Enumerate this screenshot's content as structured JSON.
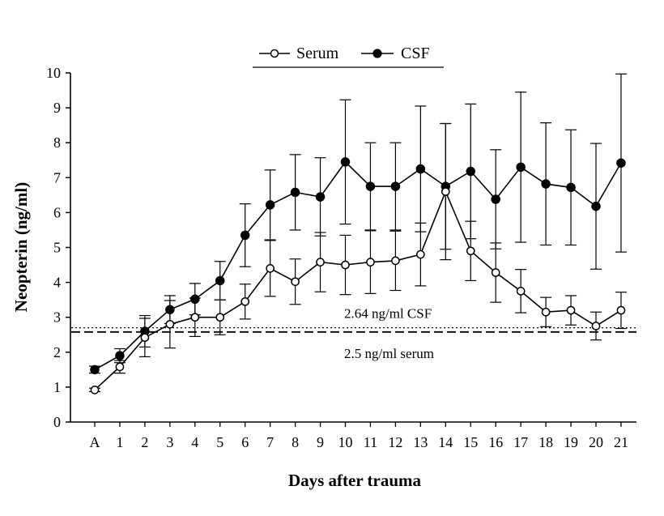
{
  "chart_data": {
    "type": "line",
    "title": "",
    "xlabel": "Days after trauma",
    "ylabel": "Neopterin (ng/ml)",
    "categories": [
      "A",
      "1",
      "2",
      "3",
      "4",
      "5",
      "6",
      "7",
      "8",
      "9",
      "10",
      "11",
      "12",
      "13",
      "14",
      "15",
      "16",
      "17",
      "18",
      "19",
      "20",
      "21"
    ],
    "ylim": [
      0,
      10
    ],
    "yticks": [
      "0",
      "1",
      "2",
      "3",
      "4",
      "5",
      "6",
      "7",
      "8",
      "9",
      "10"
    ],
    "grid": false,
    "legend_position": "top-center",
    "series": [
      {
        "name": "Serum",
        "marker": "open-circle",
        "color": "#000000",
        "values": [
          0.92,
          1.58,
          2.42,
          2.8,
          3.0,
          3.0,
          3.45,
          4.4,
          4.02,
          4.58,
          4.5,
          4.58,
          4.62,
          4.8,
          6.6,
          4.9,
          4.28,
          3.75,
          3.15,
          3.2,
          2.75,
          3.2
        ],
        "error": [
          0.05,
          0.18,
          0.55,
          0.68,
          0.55,
          0.5,
          0.5,
          0.8,
          0.65,
          0.85,
          0.85,
          0.9,
          0.85,
          0.9,
          1.95,
          0.85,
          0.85,
          0.62,
          0.42,
          0.42,
          0.4,
          0.52
        ]
      },
      {
        "name": "CSF",
        "marker": "filled-circle",
        "color": "#000000",
        "values": [
          1.5,
          1.9,
          2.6,
          3.22,
          3.52,
          4.05,
          5.35,
          6.22,
          6.58,
          6.45,
          7.45,
          6.75,
          6.75,
          7.25,
          6.75,
          7.18,
          6.38,
          7.3,
          6.82,
          6.72,
          6.18,
          7.42
        ],
        "error": [
          0.1,
          0.2,
          0.45,
          0.4,
          0.45,
          0.55,
          0.9,
          1.0,
          1.08,
          1.12,
          1.78,
          1.25,
          1.25,
          1.8,
          1.8,
          1.93,
          1.42,
          2.15,
          1.75,
          1.65,
          1.8,
          2.55
        ]
      }
    ],
    "reference_lines": [
      {
        "label": "2.64 ng/ml CSF",
        "y": 2.7,
        "style": "dotted"
      },
      {
        "label": "2.5 ng/ml serum",
        "y": 2.58,
        "style": "dashed"
      }
    ]
  }
}
